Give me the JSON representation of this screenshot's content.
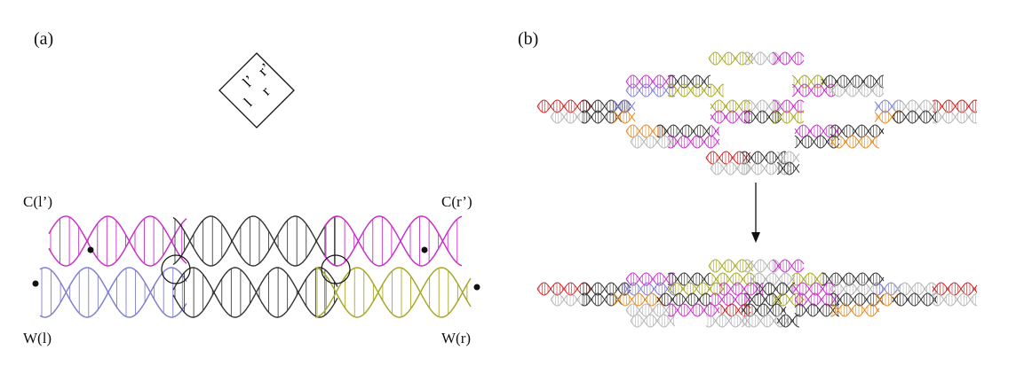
{
  "panels": {
    "a": {
      "label": "(a)"
    },
    "b": {
      "label": "(b)"
    }
  },
  "tile": {
    "corner_labels": [
      "l’",
      "r’",
      "l",
      "r"
    ]
  },
  "duplex_labels": {
    "c_left": "C(l’)",
    "c_right": "C(r’)",
    "w_left": "W(l)",
    "w_right": "W(r)"
  },
  "colors": {
    "magenta": "#c832c8",
    "blue": "#8080d0",
    "black": "#333333",
    "olive": "#a8a828",
    "gray": "#b4b4b4",
    "red": "#cc2222",
    "orange": "#e08a28"
  }
}
